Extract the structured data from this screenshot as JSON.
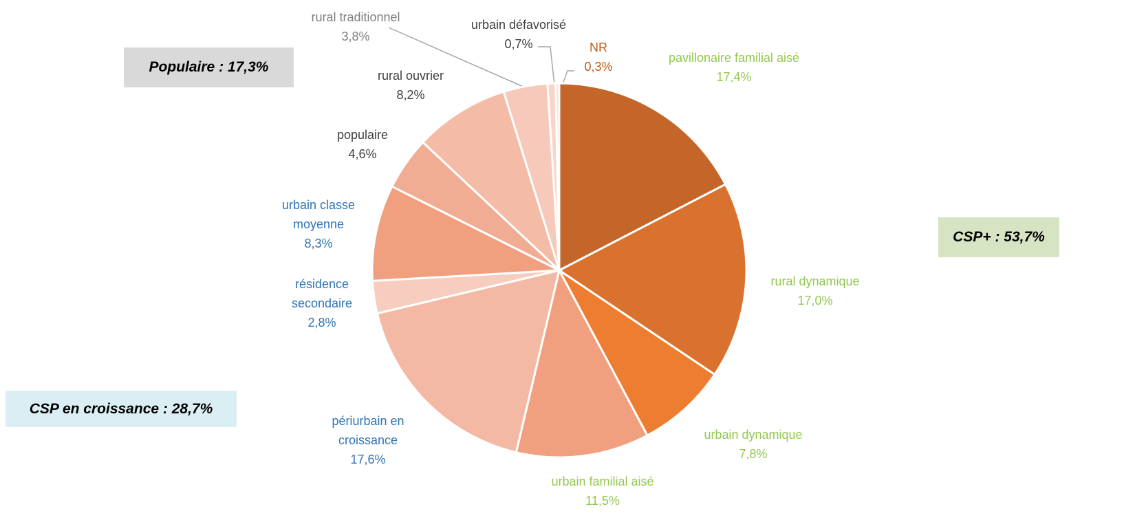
{
  "chart_data": {
    "type": "pie",
    "categories": [
      "pavillonaire familial aisé",
      "rural dynamique",
      "urbain dynamique",
      "urbain familial aisé",
      "périurbain en croissance",
      "résidence secondaire",
      "urbain classe moyenne",
      "populaire",
      "rural ouvrier",
      "rural traditionnel",
      "urbain défavorisé",
      "NR"
    ],
    "values": [
      17.4,
      17.0,
      7.8,
      11.5,
      17.6,
      2.8,
      8.3,
      4.6,
      8.2,
      3.8,
      0.7,
      0.3
    ],
    "value_labels": [
      "17,4%",
      "17,0%",
      "7,8%",
      "11,5%",
      "17,6%",
      "2,8%",
      "8,3%",
      "4,6%",
      "8,2%",
      "3,8%",
      "0,7%",
      "0,3%"
    ],
    "colors": [
      "#c4652a",
      "#d9722f",
      "#ed7d31",
      "#f0a07e",
      "#f4b9a4",
      "#f7cdbf",
      "#f0a07e",
      "#f1ad93",
      "#f4bba6",
      "#f7c9ba",
      "#f9d5c9",
      "#fbe0d6"
    ],
    "label_colors": [
      "#92c84f",
      "#92c84f",
      "#92c84f",
      "#92c84f",
      "#2e75b6",
      "#2e75b6",
      "#2e75b6",
      "#404040",
      "#404040",
      "#7f7f7f",
      "#404040",
      "#c55a11"
    ],
    "annotations": [
      "Populaire : 17,3%",
      "CSP+ : 53,7%",
      "CSP en croissance : 28,7%"
    ]
  }
}
